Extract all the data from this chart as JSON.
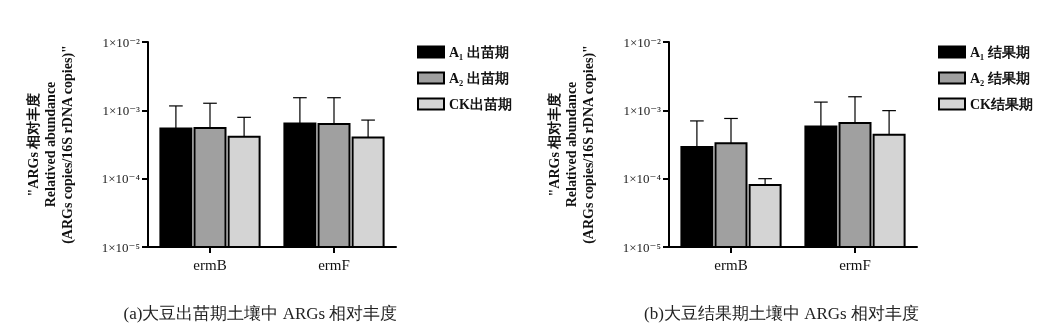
{
  "chart_data": [
    {
      "type": "bar",
      "title": "(a)大豆出苗期土壤中 ARGs 相对丰度",
      "ylabel": "\"ARGs 相对丰度\nRelatived abundance\n(ARGs copies/16S rDNA copies)\"",
      "categories": [
        "ermB",
        "ermF"
      ],
      "series": [
        {
          "name": "A₁ 出苗期",
          "color": "#000000",
          "values": [
            0.00054,
            0.00064
          ],
          "errors": [
            [
              0.00054,
              0.00116
            ],
            [
              0.00064,
              0.00153
            ]
          ]
        },
        {
          "name": "A₂ 出苗期",
          "color": "#a0a0a0",
          "values": [
            0.00055,
            0.00063
          ],
          "errors": [
            [
              0.00055,
              0.00127
            ],
            [
              0.00063,
              0.00153
            ]
          ]
        },
        {
          "name": "CK出苗期",
          "color": "#d4d4d4",
          "values": [
            0.00041,
            0.0004
          ],
          "errors": [
            [
              0.00041,
              0.00079
            ],
            [
              0.0004,
              0.00072
            ]
          ]
        }
      ],
      "log": "y",
      "ylim": [
        1e-05,
        0.01
      ],
      "yticks": [
        {
          "value": 1e-05,
          "label": "1×10⁻⁵"
        },
        {
          "value": 0.0001,
          "label": "1×10⁻⁴"
        },
        {
          "value": 0.001,
          "label": "1×10⁻³"
        },
        {
          "value": 0.01,
          "label": "1×10⁻²"
        }
      ],
      "grid": false,
      "legend": "top right"
    },
    {
      "type": "bar",
      "title": "(b)大豆结果期土壤中 ARGs 相对丰度",
      "ylabel": "\"ARGs 相对丰度\nRelatived abundance\n(ARGs copies/16S rDNA copies)\"",
      "categories": [
        "ermB",
        "ermF"
      ],
      "series": [
        {
          "name": "A₁ 结果期",
          "color": "#000000",
          "values": [
            0.00029,
            0.00058
          ],
          "errors": [
            [
              0.00029,
              0.0007
            ],
            [
              0.00058,
              0.00132
            ]
          ]
        },
        {
          "name": "A₂ 结果期",
          "color": "#a0a0a0",
          "values": [
            0.00033,
            0.00065
          ],
          "errors": [
            [
              0.00033,
              0.00076
            ],
            [
              0.00065,
              0.00158
            ]
          ]
        },
        {
          "name": "CK结果期",
          "color": "#d4d4d4",
          "values": [
            8.1e-05,
            0.00044
          ],
          "errors": [
            [
              8.1e-05,
              0.0001
            ],
            [
              0.00044,
              0.00099
            ]
          ]
        }
      ],
      "log": "y",
      "ylim": [
        1e-05,
        0.01
      ],
      "yticks": [
        {
          "value": 1e-05,
          "label": "1×10⁻⁵"
        },
        {
          "value": 0.0001,
          "label": "1×10⁻⁴"
        },
        {
          "value": 0.001,
          "label": "1×10⁻³"
        },
        {
          "value": 0.01,
          "label": "1×10⁻²"
        }
      ],
      "grid": false,
      "legend": "top right"
    }
  ]
}
